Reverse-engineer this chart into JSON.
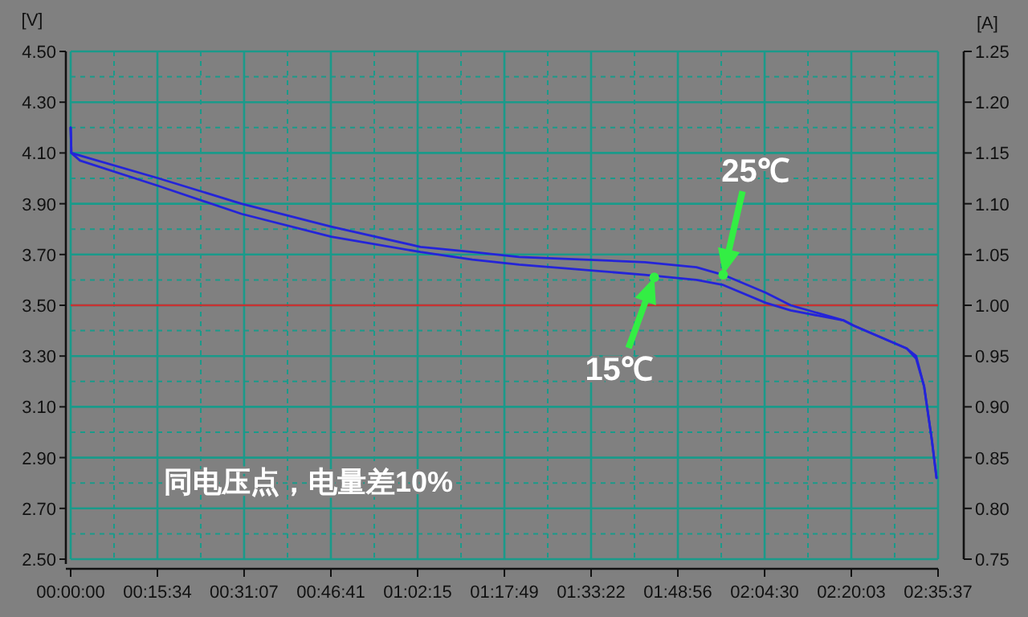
{
  "chart_data": {
    "type": "line",
    "ylabel": "[V]",
    "y2label": "[A]",
    "xlim": [
      0,
      2.5936
    ],
    "ylim": [
      2.5,
      4.5
    ],
    "y2lim": [
      0.75,
      1.25
    ],
    "xticks": [
      {
        "value": 0,
        "label": "00:00:00"
      },
      {
        "value": 0.1297,
        "label": null
      },
      {
        "value": 0.2594,
        "label": "00:15:34"
      },
      {
        "value": 0.389,
        "label": null
      },
      {
        "value": 0.5186,
        "label": "00:31:07"
      },
      {
        "value": 0.6484,
        "label": null
      },
      {
        "value": 0.7781,
        "label": "00:46:41"
      },
      {
        "value": 0.9078,
        "label": null
      },
      {
        "value": 1.0375,
        "label": "01:02:15"
      },
      {
        "value": 1.1672,
        "label": null
      },
      {
        "value": 1.2969,
        "label": "01:17:49"
      },
      {
        "value": 1.4265,
        "label": null
      },
      {
        "value": 1.5561,
        "label": "01:33:22"
      },
      {
        "value": 1.6859,
        "label": null
      },
      {
        "value": 1.8156,
        "label": "01:48:56"
      },
      {
        "value": 1.9453,
        "label": null
      },
      {
        "value": 2.075,
        "label": "02:04:30"
      },
      {
        "value": 2.2046,
        "label": null
      },
      {
        "value": 2.3342,
        "label": "02:20:03"
      },
      {
        "value": 2.4639,
        "label": null
      },
      {
        "value": 2.5936,
        "label": "02:35:37"
      }
    ],
    "yticks": [
      {
        "value": 2.5,
        "label": "2.50"
      },
      {
        "value": 2.6,
        "label": null
      },
      {
        "value": 2.7,
        "label": "2.70"
      },
      {
        "value": 2.8,
        "label": null
      },
      {
        "value": 2.9,
        "label": "2.90"
      },
      {
        "value": 3.0,
        "label": null
      },
      {
        "value": 3.1,
        "label": "3.10"
      },
      {
        "value": 3.2,
        "label": null
      },
      {
        "value": 3.3,
        "label": "3.30"
      },
      {
        "value": 3.4,
        "label": null
      },
      {
        "value": 3.5,
        "label": "3.50"
      },
      {
        "value": 3.6,
        "label": null
      },
      {
        "value": 3.7,
        "label": "3.70"
      },
      {
        "value": 3.8,
        "label": null
      },
      {
        "value": 3.9,
        "label": "3.90"
      },
      {
        "value": 4.0,
        "label": null
      },
      {
        "value": 4.1,
        "label": "4.10"
      },
      {
        "value": 4.2,
        "label": null
      },
      {
        "value": 4.3,
        "label": "4.30"
      },
      {
        "value": 4.4,
        "label": null
      },
      {
        "value": 4.5,
        "label": "4.50"
      }
    ],
    "y2ticks": [
      {
        "value": 0.75,
        "label": "0.75"
      },
      {
        "value": 0.8,
        "label": "0.80"
      },
      {
        "value": 0.85,
        "label": "0.85"
      },
      {
        "value": 0.9,
        "label": "0.90"
      },
      {
        "value": 0.95,
        "label": "0.95"
      },
      {
        "value": 1.0,
        "label": "1.00"
      },
      {
        "value": 1.05,
        "label": "1.05"
      },
      {
        "value": 1.1,
        "label": "1.10"
      },
      {
        "value": 1.15,
        "label": "1.15"
      },
      {
        "value": 1.2,
        "label": "1.20"
      },
      {
        "value": 1.25,
        "label": "1.25"
      }
    ],
    "x": [
      0,
      0.002,
      0.028,
      0.263,
      0.511,
      0.779,
      1.046,
      1.201,
      1.341,
      1.717,
      1.871,
      1.951,
      2.078,
      2.153,
      2.312,
      2.341,
      2.5,
      2.528,
      2.552,
      2.575,
      2.589
    ],
    "series": [
      {
        "color": "#2424d8",
        "values": [
          4.2,
          4.1,
          4.09,
          4.0,
          3.9,
          3.81,
          3.73,
          3.71,
          3.69,
          3.67,
          3.65,
          3.62,
          3.55,
          3.5,
          3.44,
          3.42,
          3.33,
          3.29,
          3.18,
          2.97,
          2.82
        ]
      },
      {
        "color": "#2424d8",
        "values": [
          4.2,
          4.1,
          4.07,
          3.97,
          3.86,
          3.77,
          3.71,
          3.68,
          3.66,
          3.62,
          3.6,
          3.58,
          3.51,
          3.48,
          3.44,
          3.42,
          3.33,
          3.3,
          3.18,
          2.97,
          2.82
        ]
      }
    ],
    "ref_lines": [
      {
        "axis": "y",
        "value": 3.5,
        "color": "#c83232"
      }
    ],
    "annotations": [
      {
        "text": "25℃",
        "x": 1.951,
        "y": 3.62
      },
      {
        "text": "15℃",
        "x": 1.745,
        "y": 3.61
      },
      "同电压点，电量差10%"
    ],
    "grid": true,
    "marker": "none",
    "line_style": "solid"
  }
}
